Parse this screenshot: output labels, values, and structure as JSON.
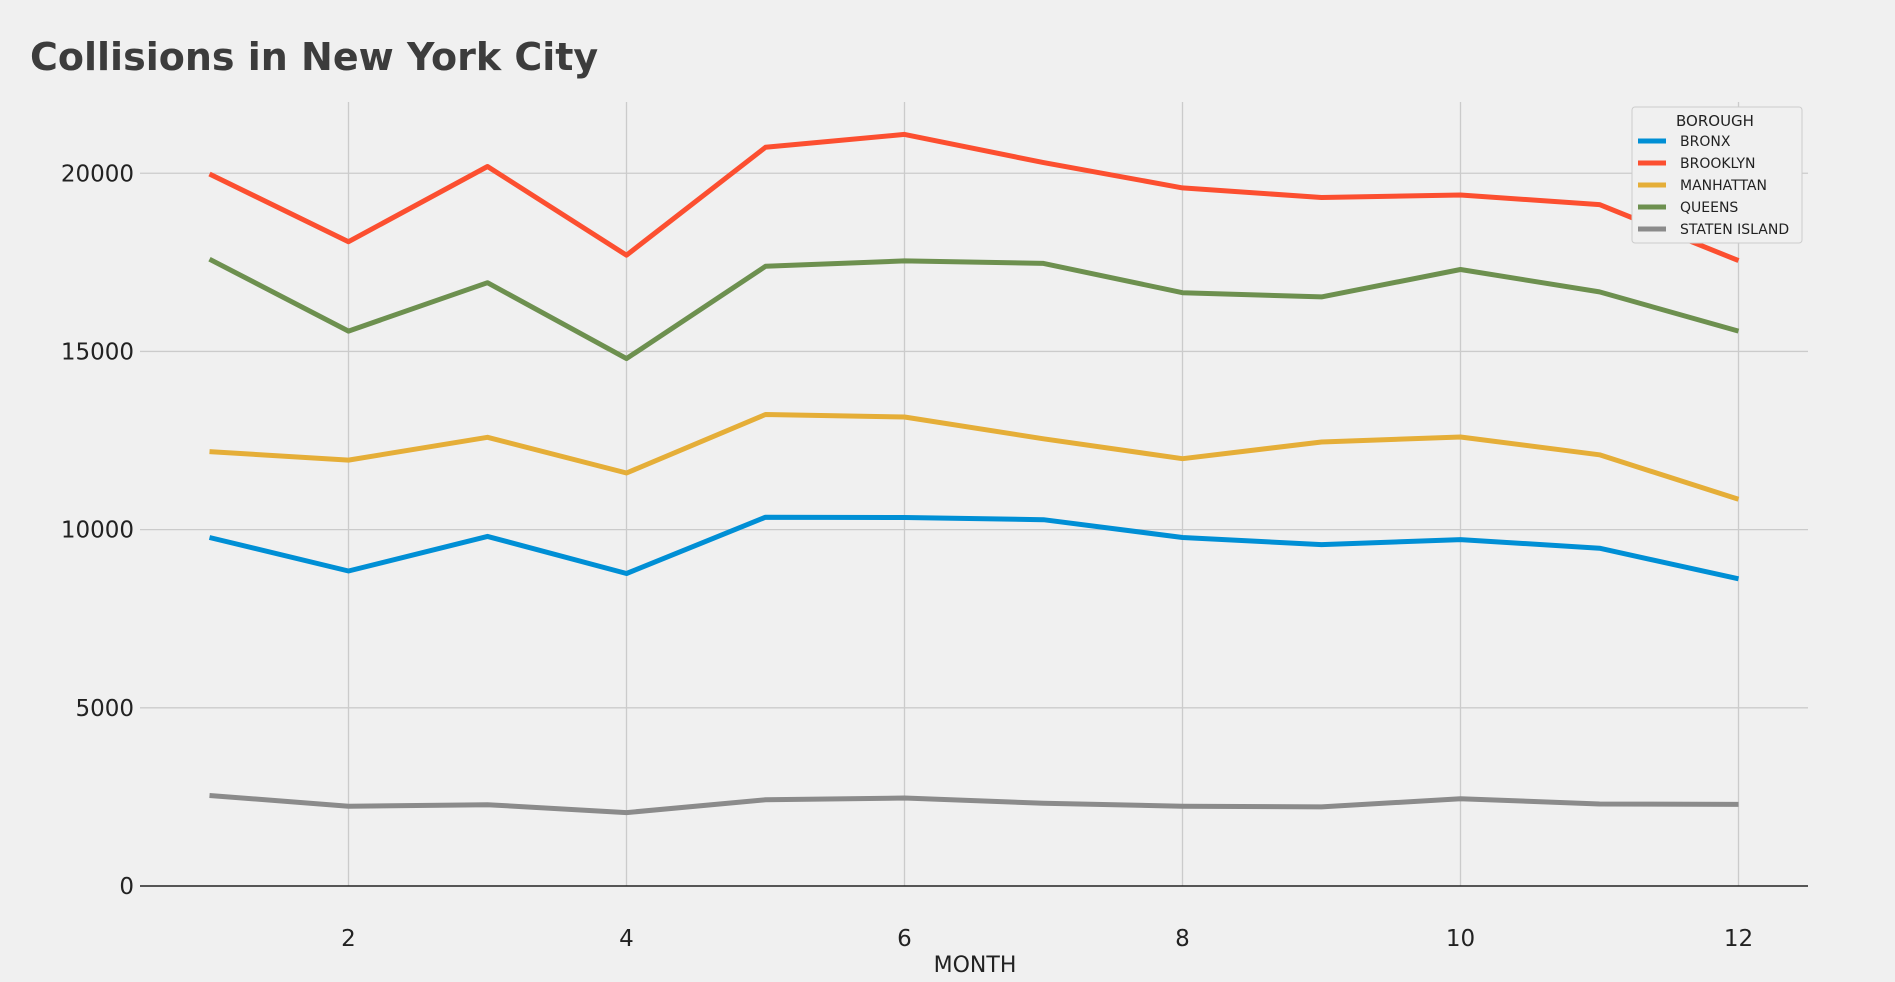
{
  "chart_data": {
    "type": "line",
    "title": "Collisions in New York City",
    "xlabel": "MONTH",
    "ylabel": "",
    "x": [
      1,
      2,
      3,
      4,
      5,
      6,
      7,
      8,
      9,
      10,
      11,
      12
    ],
    "xticks": [
      2,
      4,
      6,
      8,
      10,
      12
    ],
    "xlim": [
      0.5,
      12.5
    ],
    "yticks": [
      0,
      5000,
      10000,
      15000,
      20000
    ],
    "ylim": [
      0,
      22000
    ],
    "grid": true,
    "legend_title": "BOROUGH",
    "legend_position": "top-right",
    "series": [
      {
        "name": "BRONX",
        "color": "#008fd5",
        "values": [
          9780,
          8840,
          9810,
          8770,
          10350,
          10340,
          10280,
          9780,
          9580,
          9720,
          9480,
          8620
        ]
      },
      {
        "name": "BROOKLYN",
        "color": "#fc4f30",
        "values": [
          19980,
          18080,
          20190,
          17700,
          20730,
          21090,
          20300,
          19590,
          19320,
          19390,
          19120,
          17550
        ]
      },
      {
        "name": "MANHATTAN",
        "color": "#e5ae38",
        "values": [
          12190,
          11950,
          12590,
          11590,
          13230,
          13160,
          12550,
          11990,
          12460,
          12600,
          12100,
          10850
        ]
      },
      {
        "name": "QUEENS",
        "color": "#6d904f",
        "values": [
          17590,
          15570,
          16930,
          14800,
          17390,
          17540,
          17470,
          16650,
          16530,
          17300,
          16670,
          15570
        ]
      },
      {
        "name": "STATEN ISLAND",
        "color": "#8b8b8b",
        "values": [
          2540,
          2240,
          2280,
          2060,
          2420,
          2470,
          2320,
          2240,
          2220,
          2450,
          2300,
          2290
        ]
      }
    ]
  }
}
